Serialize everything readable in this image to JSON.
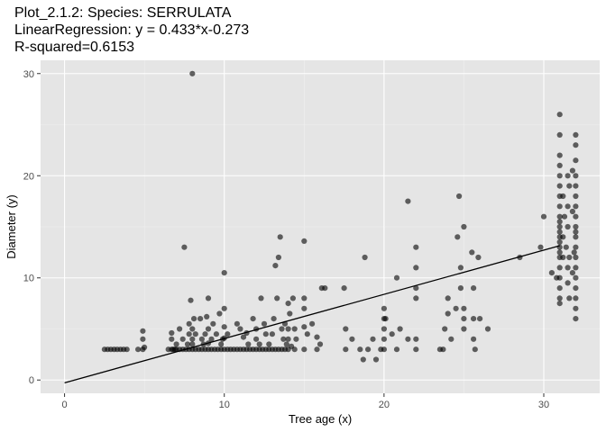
{
  "chart_data": {
    "type": "scatter",
    "title_lines": [
      "Plot_2.1.2: Species: SERRULATA",
      "LinearRegression: y = 0.433*x-0.273",
      "R-squared=0.6153"
    ],
    "xlabel": "Tree age (x)",
    "ylabel": "Diameter (y)",
    "xlim": [
      -1.5,
      33.5
    ],
    "ylim": [
      -1.3,
      31.3
    ],
    "x_ticks": [
      0,
      10,
      20,
      30
    ],
    "y_ticks": [
      0,
      10,
      20,
      30
    ],
    "grid": true,
    "regression_line": {
      "slope": 0.433,
      "intercept": -0.273,
      "x_range": [
        0,
        31
      ]
    },
    "colors": {
      "panel": "#e5e5e5",
      "grid_major": "#ffffff",
      "grid_minor": "#f0f0f0",
      "point": "#000000",
      "line": "#000000"
    },
    "points": [
      [
        2.5,
        3
      ],
      [
        2.7,
        3
      ],
      [
        2.9,
        3
      ],
      [
        3.1,
        3
      ],
      [
        3.3,
        3
      ],
      [
        3.5,
        3
      ],
      [
        3.7,
        3
      ],
      [
        3.9,
        3
      ],
      [
        4.6,
        3
      ],
      [
        4.9,
        3
      ],
      [
        4.9,
        4
      ],
      [
        4.9,
        4.8
      ],
      [
        5,
        3.2
      ],
      [
        6.5,
        3
      ],
      [
        6.7,
        3
      ],
      [
        6.8,
        3
      ],
      [
        6.9,
        3
      ],
      [
        7,
        3
      ],
      [
        7.2,
        3
      ],
      [
        7.4,
        3
      ],
      [
        7.6,
        3
      ],
      [
        7.8,
        3
      ],
      [
        8,
        3
      ],
      [
        8.2,
        3
      ],
      [
        8.4,
        3
      ],
      [
        8.6,
        3
      ],
      [
        8.8,
        3
      ],
      [
        9,
        3
      ],
      [
        9.2,
        3
      ],
      [
        9.4,
        3
      ],
      [
        9.6,
        3
      ],
      [
        9.8,
        3
      ],
      [
        10,
        3
      ],
      [
        10.2,
        3
      ],
      [
        10.4,
        3
      ],
      [
        10.6,
        3
      ],
      [
        10.8,
        3
      ],
      [
        11,
        3
      ],
      [
        11.2,
        3
      ],
      [
        11.4,
        3
      ],
      [
        11.6,
        3
      ],
      [
        11.8,
        3
      ],
      [
        12,
        3
      ],
      [
        12.2,
        3
      ],
      [
        12.4,
        3
      ],
      [
        12.6,
        3
      ],
      [
        12.8,
        3
      ],
      [
        13,
        3
      ],
      [
        13.2,
        3
      ],
      [
        13.4,
        3
      ],
      [
        13.6,
        3
      ],
      [
        13.8,
        3
      ],
      [
        14,
        3
      ],
      [
        14.4,
        3
      ],
      [
        15,
        3
      ],
      [
        15.8,
        3
      ],
      [
        6.7,
        4
      ],
      [
        6.7,
        4.6
      ],
      [
        7,
        3.5
      ],
      [
        7.2,
        5
      ],
      [
        7.4,
        4
      ],
      [
        7.5,
        13
      ],
      [
        7.7,
        3.5
      ],
      [
        7.8,
        4.5
      ],
      [
        7.8,
        5.5
      ],
      [
        7.9,
        7.8
      ],
      [
        8,
        30
      ],
      [
        8,
        5
      ],
      [
        8,
        4
      ],
      [
        8,
        3.5
      ],
      [
        8.1,
        6
      ],
      [
        8.2,
        4.5
      ],
      [
        8.5,
        6
      ],
      [
        8.6,
        4
      ],
      [
        8.7,
        3.5
      ],
      [
        8.8,
        4.5
      ],
      [
        8.9,
        6.2
      ],
      [
        9,
        8
      ],
      [
        9,
        5
      ],
      [
        9,
        3.6
      ],
      [
        9.2,
        4
      ],
      [
        9.3,
        5.5
      ],
      [
        9.5,
        4.5
      ],
      [
        9.7,
        6.5
      ],
      [
        9.8,
        3.5
      ],
      [
        9.9,
        4
      ],
      [
        10,
        10.5
      ],
      [
        10,
        7
      ],
      [
        10,
        5.2
      ],
      [
        10,
        4.1
      ],
      [
        10.2,
        4.5
      ],
      [
        10.8,
        5.5
      ],
      [
        11,
        5
      ],
      [
        11.2,
        4.2
      ],
      [
        11.4,
        4.6
      ],
      [
        11.5,
        3.5
      ],
      [
        11.8,
        6
      ],
      [
        12,
        4
      ],
      [
        12,
        5
      ],
      [
        12.2,
        3.5
      ],
      [
        12.3,
        8
      ],
      [
        12.5,
        5.5
      ],
      [
        12.6,
        4.5
      ],
      [
        12.8,
        3.5
      ],
      [
        13,
        4.5
      ],
      [
        13.1,
        6
      ],
      [
        13.2,
        11.2
      ],
      [
        13.3,
        8
      ],
      [
        13.4,
        12
      ],
      [
        13.5,
        14
      ],
      [
        13.6,
        5
      ],
      [
        13.7,
        4
      ],
      [
        13.8,
        5.5
      ],
      [
        13.9,
        3.5
      ],
      [
        14,
        7.5
      ],
      [
        14,
        5
      ],
      [
        14,
        4
      ],
      [
        14.1,
        6.5
      ],
      [
        14.2,
        3.3
      ],
      [
        14.3,
        8
      ],
      [
        14.4,
        5
      ],
      [
        14.5,
        4
      ],
      [
        15,
        13.6
      ],
      [
        15,
        8
      ],
      [
        15,
        7
      ],
      [
        15,
        5.2
      ],
      [
        15.2,
        4.5
      ],
      [
        15.5,
        5.5
      ],
      [
        15.8,
        4.2
      ],
      [
        16,
        3.5
      ],
      [
        16.1,
        9
      ],
      [
        16.3,
        9
      ],
      [
        17.5,
        9
      ],
      [
        17.6,
        5
      ],
      [
        17.6,
        3
      ],
      [
        18,
        4
      ],
      [
        18.5,
        3
      ],
      [
        18.7,
        2
      ],
      [
        18.8,
        12
      ],
      [
        19,
        3
      ],
      [
        19.3,
        4
      ],
      [
        19.5,
        2
      ],
      [
        19.8,
        3
      ],
      [
        20,
        7
      ],
      [
        20,
        6
      ],
      [
        20,
        5
      ],
      [
        20,
        4
      ],
      [
        20,
        3
      ],
      [
        20.1,
        6
      ],
      [
        20.5,
        4.5
      ],
      [
        20.8,
        10
      ],
      [
        20.8,
        3
      ],
      [
        21,
        5
      ],
      [
        21.5,
        17.5
      ],
      [
        21.5,
        4
      ],
      [
        22,
        13
      ],
      [
        22,
        11
      ],
      [
        22,
        9
      ],
      [
        22,
        8
      ],
      [
        22,
        4
      ],
      [
        22,
        3
      ],
      [
        23.5,
        3
      ],
      [
        23.7,
        3
      ],
      [
        23.8,
        5
      ],
      [
        24,
        8
      ],
      [
        24,
        6.5
      ],
      [
        24.2,
        4
      ],
      [
        24.5,
        7
      ],
      [
        24.6,
        14
      ],
      [
        24.7,
        18
      ],
      [
        24.8,
        11
      ],
      [
        24.8,
        9
      ],
      [
        25,
        15
      ],
      [
        25,
        7
      ],
      [
        25,
        5
      ],
      [
        25,
        6
      ],
      [
        25.5,
        12.5
      ],
      [
        25.6,
        9
      ],
      [
        25.6,
        6
      ],
      [
        25.6,
        4
      ],
      [
        25.7,
        3
      ],
      [
        25.9,
        12
      ],
      [
        26,
        6
      ],
      [
        26.5,
        5
      ],
      [
        28.5,
        12
      ],
      [
        29.8,
        13
      ],
      [
        30,
        16
      ],
      [
        30.5,
        10.5
      ],
      [
        30.8,
        10
      ],
      [
        31,
        26
      ],
      [
        31,
        24
      ],
      [
        31,
        22
      ],
      [
        31,
        21
      ],
      [
        31,
        20
      ],
      [
        31,
        19
      ],
      [
        31,
        18
      ],
      [
        31,
        17
      ],
      [
        31,
        16
      ],
      [
        31,
        15.5
      ],
      [
        31,
        15
      ],
      [
        31,
        14.5
      ],
      [
        31,
        14
      ],
      [
        31,
        13.5
      ],
      [
        31,
        13
      ],
      [
        31,
        12.5
      ],
      [
        31,
        12
      ],
      [
        31,
        11
      ],
      [
        31,
        10
      ],
      [
        31,
        9
      ],
      [
        31,
        8
      ],
      [
        31,
        7.5
      ],
      [
        31.2,
        18
      ],
      [
        31.2,
        14
      ],
      [
        31.2,
        12
      ],
      [
        31.3,
        16
      ],
      [
        31.4,
        13
      ],
      [
        31.5,
        20
      ],
      [
        31.5,
        17
      ],
      [
        31.5,
        15
      ],
      [
        31.5,
        11
      ],
      [
        31.5,
        9.5
      ],
      [
        31.6,
        19
      ],
      [
        31.6,
        12
      ],
      [
        31.6,
        8
      ],
      [
        32,
        24
      ],
      [
        32,
        23
      ],
      [
        32,
        21.5
      ],
      [
        32,
        20
      ],
      [
        32,
        19
      ],
      [
        32,
        18
      ],
      [
        32,
        17
      ],
      [
        32,
        16
      ],
      [
        32,
        15
      ],
      [
        32,
        14.5
      ],
      [
        32,
        14
      ],
      [
        32,
        13
      ],
      [
        32,
        12
      ],
      [
        32,
        11
      ],
      [
        32,
        10
      ],
      [
        32,
        9
      ],
      [
        32,
        8
      ],
      [
        32,
        7
      ],
      [
        32,
        6
      ],
      [
        31.8,
        20.5
      ],
      [
        31.8,
        16.5
      ],
      [
        31.8,
        10.5
      ],
      [
        31.9,
        12.5
      ]
    ]
  }
}
